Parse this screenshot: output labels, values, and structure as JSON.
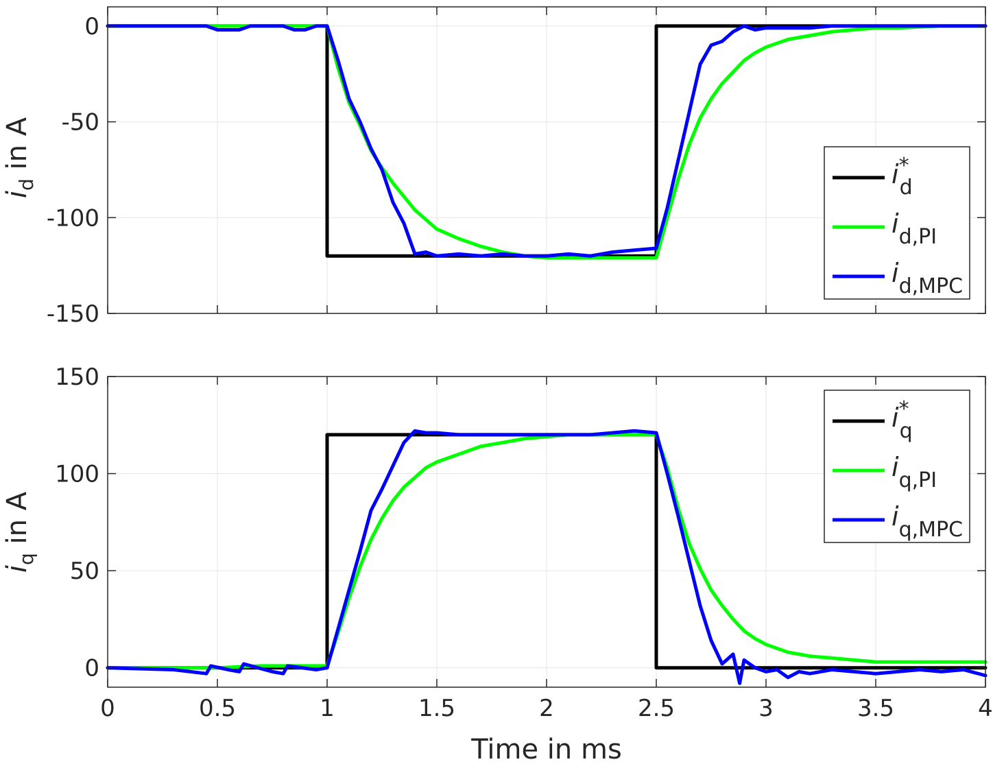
{
  "figure": {
    "xlabel": "Time in ms"
  },
  "chart_data": [
    {
      "type": "line",
      "xlabel": "",
      "ylabel_main": "i",
      "ylabel_sub": "d",
      "ylabel_rest": " in A",
      "xlim": [
        0,
        4
      ],
      "ylim": [
        -150,
        10
      ],
      "xticks": [
        "0",
        "0.5",
        "1",
        "1.5",
        "2",
        "2.5",
        "3",
        "3.5",
        "4"
      ],
      "yticks": [
        "0",
        "-50",
        "-100",
        "-150"
      ],
      "ytick_values": [
        0,
        -50,
        -100,
        -150
      ],
      "grid": true,
      "legend_position": "right",
      "legend": [
        {
          "main": "i",
          "sub": "d",
          "sup": "*",
          "color": "#000000"
        },
        {
          "main": "i",
          "sub": "d,PI",
          "sup": "",
          "color": "#00ff00"
        },
        {
          "main": "i",
          "sub": "d,MPC",
          "sup": "",
          "color": "#0000ff"
        }
      ],
      "series": [
        {
          "color": "#000000",
          "x": [
            0,
            1,
            1,
            2.5,
            2.5,
            4
          ],
          "y": [
            0,
            0,
            -120,
            -120,
            0,
            0
          ]
        },
        {
          "color": "#00ff00",
          "x": [
            0,
            0.5,
            0.7,
            1.0,
            1.05,
            1.1,
            1.15,
            1.2,
            1.25,
            1.3,
            1.35,
            1.4,
            1.45,
            1.5,
            1.6,
            1.7,
            1.8,
            1.9,
            2.0,
            2.1,
            2.2,
            2.3,
            2.4,
            2.5,
            2.55,
            2.6,
            2.65,
            2.7,
            2.75,
            2.8,
            2.85,
            2.9,
            2.95,
            3.0,
            3.1,
            3.2,
            3.3,
            3.4,
            3.5,
            3.6,
            3.7,
            3.8,
            3.9,
            4.0
          ],
          "y": [
            0,
            0,
            0,
            0,
            -22,
            -40,
            -52,
            -65,
            -74,
            -82,
            -89,
            -96,
            -101,
            -106,
            -111,
            -115,
            -118,
            -120,
            -121,
            -121,
            -121,
            -121,
            -121,
            -121,
            -100,
            -80,
            -62,
            -48,
            -38,
            -30,
            -24,
            -18,
            -14,
            -11,
            -7,
            -5,
            -3,
            -2,
            -1,
            -1,
            -0.5,
            0,
            0,
            0
          ]
        },
        {
          "color": "#0000ff",
          "x": [
            0,
            0.45,
            0.5,
            0.6,
            0.65,
            0.8,
            0.85,
            0.9,
            0.95,
            1.0,
            1.05,
            1.1,
            1.15,
            1.2,
            1.25,
            1.3,
            1.35,
            1.4,
            1.45,
            1.5,
            1.6,
            1.7,
            1.8,
            1.9,
            2.0,
            2.1,
            2.2,
            2.3,
            2.4,
            2.5,
            2.55,
            2.6,
            2.65,
            2.7,
            2.75,
            2.8,
            2.85,
            2.9,
            2.95,
            3.0,
            3.1,
            3.2,
            3.3,
            3.4,
            3.5,
            3.6,
            3.7,
            3.8,
            3.9,
            4.0
          ],
          "y": [
            0,
            0,
            -2,
            -2,
            0,
            0,
            -2,
            -2,
            0,
            0,
            -18,
            -38,
            -50,
            -64,
            -75,
            -92,
            -103,
            -119,
            -118,
            -120,
            -119,
            -120,
            -119,
            -120,
            -120,
            -119,
            -120,
            -118,
            -117,
            -116,
            -95,
            -70,
            -45,
            -20,
            -10,
            -8,
            -3,
            0,
            -2,
            -1,
            -1,
            -1,
            0,
            0,
            0,
            0,
            0,
            0,
            0,
            0
          ]
        }
      ]
    },
    {
      "type": "line",
      "xlabel": "Time in ms",
      "ylabel_main": "i",
      "ylabel_sub": "q",
      "ylabel_rest": " in A",
      "xlim": [
        0,
        4
      ],
      "ylim": [
        -10,
        150
      ],
      "xticks": [
        "0",
        "0.5",
        "1",
        "1.5",
        "2",
        "2.5",
        "3",
        "3.5",
        "4"
      ],
      "yticks": [
        "150",
        "100",
        "50",
        "0"
      ],
      "ytick_values": [
        150,
        100,
        50,
        0
      ],
      "grid": true,
      "legend_position": "top-right",
      "legend": [
        {
          "main": "i",
          "sub": "q",
          "sup": "*",
          "color": "#000000"
        },
        {
          "main": "i",
          "sub": "q,PI",
          "sup": "",
          "color": "#00ff00"
        },
        {
          "main": "i",
          "sub": "q,MPC",
          "sup": "",
          "color": "#0000ff"
        }
      ],
      "series": [
        {
          "color": "#000000",
          "x": [
            0,
            1,
            1,
            2.5,
            2.5,
            4
          ],
          "y": [
            0,
            0,
            120,
            120,
            0,
            0
          ]
        },
        {
          "color": "#00ff00",
          "x": [
            0,
            0.5,
            0.7,
            0.9,
            1.0,
            1.05,
            1.1,
            1.15,
            1.2,
            1.25,
            1.3,
            1.35,
            1.4,
            1.45,
            1.5,
            1.6,
            1.7,
            1.8,
            1.9,
            2.0,
            2.1,
            2.2,
            2.3,
            2.4,
            2.5,
            2.55,
            2.6,
            2.65,
            2.7,
            2.75,
            2.8,
            2.85,
            2.9,
            2.95,
            3.0,
            3.1,
            3.2,
            3.3,
            3.4,
            3.5,
            3.6,
            3.7,
            3.8,
            3.9,
            4.0
          ],
          "y": [
            0,
            0,
            1,
            1,
            1,
            18,
            36,
            52,
            66,
            77,
            86,
            93,
            98,
            103,
            106,
            110,
            114,
            116,
            118,
            119,
            120,
            120,
            120,
            120,
            120,
            103,
            82,
            64,
            51,
            40,
            32,
            25,
            19,
            15,
            12,
            8,
            6,
            5,
            4,
            3,
            3,
            3,
            3,
            3,
            3
          ]
        },
        {
          "color": "#0000ff",
          "x": [
            0,
            0.3,
            0.45,
            0.47,
            0.55,
            0.6,
            0.62,
            0.75,
            0.8,
            0.82,
            0.95,
            1.0,
            1.05,
            1.1,
            1.15,
            1.2,
            1.25,
            1.3,
            1.35,
            1.4,
            1.45,
            1.5,
            1.6,
            1.7,
            1.8,
            1.9,
            2.0,
            2.1,
            2.2,
            2.3,
            2.4,
            2.5,
            2.55,
            2.6,
            2.65,
            2.7,
            2.75,
            2.8,
            2.85,
            2.88,
            2.9,
            2.95,
            3.0,
            3.05,
            3.1,
            3.15,
            3.2,
            3.3,
            3.4,
            3.5,
            3.6,
            3.7,
            3.8,
            3.9,
            4.0
          ],
          "y": [
            0,
            -1,
            -3,
            1,
            -1,
            -2,
            2,
            -2,
            -3,
            1,
            -1,
            0,
            20,
            40,
            60,
            81,
            92,
            104,
            116,
            122,
            121,
            121,
            120,
            120,
            120,
            120,
            120,
            120,
            120,
            121,
            122,
            121,
            100,
            78,
            55,
            32,
            14,
            2,
            7,
            -8,
            4,
            0,
            -2,
            -1,
            -5,
            -2,
            -3,
            -1,
            -2,
            -3,
            -2,
            -1,
            -2,
            -1,
            -4
          ]
        }
      ]
    }
  ]
}
